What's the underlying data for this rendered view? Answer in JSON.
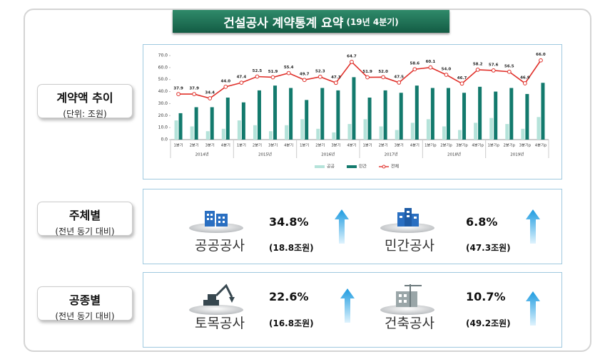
{
  "header": {
    "title": "건설공사 계약통계 요약",
    "title_note": "(19년 4분기)"
  },
  "sections": [
    {
      "label": "계약액 추이",
      "sublabel": "(단위: 조원)"
    },
    {
      "label": "주체별",
      "sublabel": "(전년 동기 대비)",
      "items": [
        {
          "name": "공공공사",
          "change": "34.8%",
          "amount": "(18.8조원)"
        },
        {
          "name": "민간공사",
          "change": "6.8%",
          "amount": "(47.3조원)"
        }
      ]
    },
    {
      "label": "공종별",
      "sublabel": "(전년 동기 대비)",
      "items": [
        {
          "name": "토목공사",
          "change": "22.6%",
          "amount": "(16.8조원)"
        },
        {
          "name": "건축공사",
          "change": "10.7%",
          "amount": "(49.2조원)"
        }
      ]
    }
  ],
  "chart_data": {
    "type": "bar",
    "categories": [
      "1분기",
      "2분기",
      "3분기",
      "4분기",
      "1분기",
      "2분기",
      "3분기",
      "4분기",
      "1분기",
      "2분기",
      "3분기",
      "4분기",
      "1분기",
      "2분기",
      "3분기",
      "4분기",
      "1분기p",
      "2분기p",
      "3분기p",
      "4분기p",
      "1분기p",
      "2분기p",
      "3분기p",
      "4분기p"
    ],
    "groups": [
      "2014년",
      "2015년",
      "2016년",
      "2017년",
      "2018년",
      "2019년"
    ],
    "series": [
      {
        "name": "공공",
        "type": "bar",
        "color": "#b5e3da",
        "values": [
          16,
          11,
          7,
          9,
          16,
          12,
          7,
          12,
          17,
          9,
          6,
          13,
          17,
          11,
          8,
          14,
          17,
          11,
          8,
          14,
          18,
          13,
          9,
          18.8
        ]
      },
      {
        "name": "민간",
        "type": "bar",
        "color": "#137a6d",
        "values": [
          22,
          27,
          27,
          35,
          31,
          41,
          45,
          43,
          33,
          43,
          41,
          52,
          35,
          41,
          39,
          45,
          43,
          43,
          39,
          44,
          40,
          43,
          38,
          47.3
        ]
      },
      {
        "name": "전체",
        "type": "line",
        "color": "#e0302a",
        "values": [
          37.9,
          37.9,
          34.4,
          44.0,
          47.4,
          52.5,
          51.9,
          55.4,
          49.7,
          52.3,
          47.3,
          64.7,
          51.9,
          52.0,
          47.5,
          58.6,
          60.1,
          54.0,
          46.7,
          58.2,
          57.6,
          56.5,
          46.9,
          66.0
        ],
        "value_labels": [
          "37.9",
          "37.9",
          "34.4",
          "44.0",
          "47.4",
          "52.5",
          "51.9",
          "55.4",
          "49.7",
          "52.3",
          "47.3",
          "64.7",
          "51.9",
          "52.0",
          "47.5",
          "58.6",
          "60.1",
          "54.0",
          "46.7",
          "58.2",
          "57.6",
          "56.5",
          "46.9",
          "66.0"
        ]
      }
    ],
    "ylim": [
      0,
      70
    ],
    "yticks": [
      {
        "value": 0,
        "label": "0.0"
      },
      {
        "value": 10,
        "label": "10.0"
      },
      {
        "value": 20,
        "label": "20.0"
      },
      {
        "value": 30,
        "label": "30.0"
      },
      {
        "value": 40,
        "label": "40.0"
      },
      {
        "value": 50,
        "label": "50.0"
      },
      {
        "value": 60,
        "label": "60.0"
      },
      {
        "value": 70,
        "label": "70.0"
      }
    ],
    "grid": false,
    "legend": "bottom"
  }
}
